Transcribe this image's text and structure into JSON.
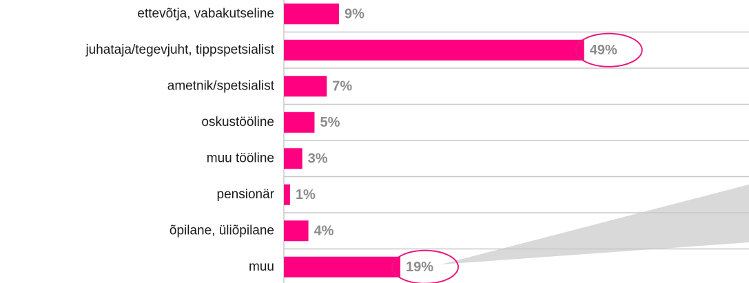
{
  "chart_data": {
    "type": "bar",
    "orientation": "horizontal",
    "categories": [
      "ettevõtja, vabakutseline",
      "juhataja/tegevjuht, tippspetsialist",
      "ametnik/spetsialist",
      "oskustööline",
      "muu tööline",
      "pensionär",
      "õpilane, üliõpilane",
      "muu"
    ],
    "values": [
      9,
      49,
      7,
      5,
      3,
      1,
      4,
      19
    ],
    "value_labels": [
      "9%",
      "49%",
      "7%",
      "5%",
      "3%",
      "1%",
      "4%",
      "19%"
    ],
    "color": "#ff0080",
    "xlim": [
      0,
      75
    ]
  }
}
